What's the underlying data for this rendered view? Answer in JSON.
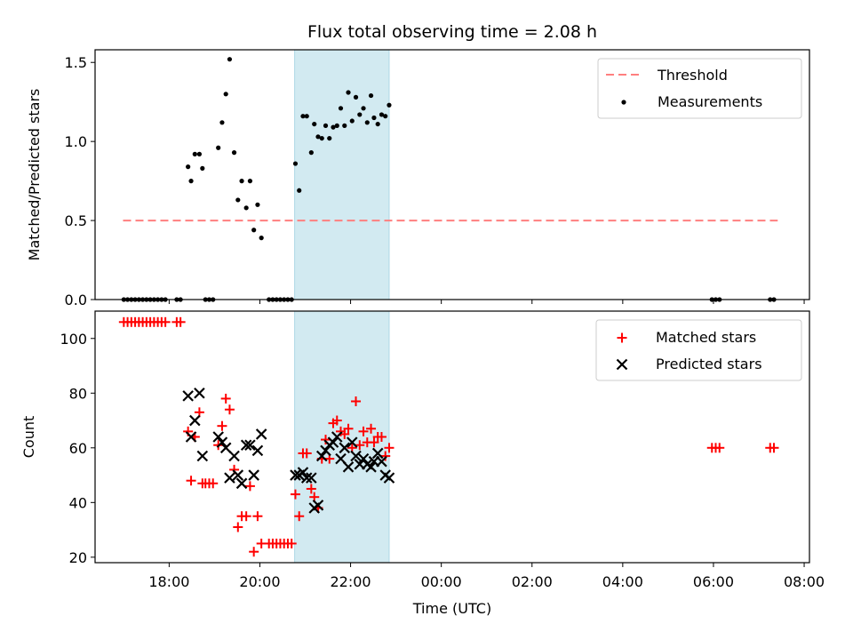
{
  "title": "Flux total observing time = 2.08 h",
  "shade_color": "#add8e6",
  "shaded_span": [
    "20:46",
    "22:51"
  ],
  "x_axis": {
    "label": "Time (UTC)",
    "range": [
      "16:22",
      "08:07"
    ],
    "ticks": [
      "18:00",
      "20:00",
      "22:00",
      "00:00",
      "02:00",
      "04:00",
      "06:00",
      "08:00"
    ]
  },
  "top_panel": {
    "ylabel": "Matched/Predicted stars",
    "ylim": [
      0,
      1.58
    ],
    "yticks": [
      "0.0",
      "0.5",
      "1.0",
      "1.5"
    ],
    "legend": {
      "placement": "top-right",
      "threshold_label": "Threshold",
      "measurements_label": "Measurements"
    },
    "threshold": {
      "value": 0.5,
      "from": "16:59",
      "to": "07:25",
      "color": "#ff7f7f"
    },
    "measurements": {
      "color": "#000000",
      "points": [
        [
          "17:00",
          0
        ],
        [
          "17:05",
          0
        ],
        [
          "17:10",
          0
        ],
        [
          "17:15",
          0
        ],
        [
          "17:20",
          0
        ],
        [
          "17:25",
          0
        ],
        [
          "17:30",
          0
        ],
        [
          "17:35",
          0
        ],
        [
          "17:40",
          0
        ],
        [
          "17:45",
          0
        ],
        [
          "17:50",
          0
        ],
        [
          "17:55",
          0
        ],
        [
          "18:10",
          0
        ],
        [
          "18:15",
          0
        ],
        [
          "18:25",
          0.84
        ],
        [
          "18:29",
          0.75
        ],
        [
          "18:34",
          0.92
        ],
        [
          "18:40",
          0.92
        ],
        [
          "18:44",
          0.83
        ],
        [
          "18:48",
          0
        ],
        [
          "18:53",
          0
        ],
        [
          "18:58",
          0
        ],
        [
          "19:05",
          0.96
        ],
        [
          "19:10",
          1.12
        ],
        [
          "19:15",
          1.3
        ],
        [
          "19:20",
          1.52
        ],
        [
          "19:26",
          0.93
        ],
        [
          "19:31",
          0.63
        ],
        [
          "19:36",
          0.75
        ],
        [
          "19:42",
          0.58
        ],
        [
          "19:47",
          0.75
        ],
        [
          "19:52",
          0.44
        ],
        [
          "19:57",
          0.6
        ],
        [
          "20:02",
          0.39
        ],
        [
          "20:12",
          0
        ],
        [
          "20:17",
          0
        ],
        [
          "20:22",
          0
        ],
        [
          "20:27",
          0
        ],
        [
          "20:32",
          0
        ],
        [
          "20:37",
          0
        ],
        [
          "20:42",
          0
        ],
        [
          "20:47",
          0.86
        ],
        [
          "20:52",
          0.69
        ],
        [
          "20:57",
          1.16
        ],
        [
          "21:02",
          1.16
        ],
        [
          "21:08",
          0.93
        ],
        [
          "21:12",
          1.11
        ],
        [
          "21:17",
          1.03
        ],
        [
          "21:22",
          1.02
        ],
        [
          "21:27",
          1.1
        ],
        [
          "21:32",
          1.02
        ],
        [
          "21:37",
          1.09
        ],
        [
          "21:42",
          1.1
        ],
        [
          "21:47",
          1.21
        ],
        [
          "21:52",
          1.1
        ],
        [
          "21:57",
          1.31
        ],
        [
          "22:02",
          1.13
        ],
        [
          "22:07",
          1.28
        ],
        [
          "22:12",
          1.17
        ],
        [
          "22:17",
          1.21
        ],
        [
          "22:22",
          1.12
        ],
        [
          "22:27",
          1.29
        ],
        [
          "22:31",
          1.15
        ],
        [
          "22:36",
          1.11
        ],
        [
          "22:41",
          1.17
        ],
        [
          "22:46",
          1.16
        ],
        [
          "22:51",
          1.23
        ],
        [
          "05:58",
          0
        ],
        [
          "06:03",
          0
        ],
        [
          "06:08",
          0
        ],
        [
          "07:15",
          0
        ],
        [
          "07:20",
          0
        ]
      ]
    }
  },
  "bottom_panel": {
    "ylabel": "Count",
    "ylim": [
      18,
      110
    ],
    "yticks": [
      "20",
      "40",
      "60",
      "80",
      "100"
    ],
    "legend": {
      "placement": "top-right",
      "matched_label": "Matched stars",
      "predicted_label": "Predicted stars"
    },
    "matched": {
      "color": "#ff0000",
      "points": [
        [
          "17:00",
          106
        ],
        [
          "17:05",
          106
        ],
        [
          "17:10",
          106
        ],
        [
          "17:15",
          106
        ],
        [
          "17:20",
          106
        ],
        [
          "17:25",
          106
        ],
        [
          "17:30",
          106
        ],
        [
          "17:35",
          106
        ],
        [
          "17:40",
          106
        ],
        [
          "17:45",
          106
        ],
        [
          "17:50",
          106
        ],
        [
          "17:55",
          106
        ],
        [
          "18:10",
          106
        ],
        [
          "18:15",
          106
        ],
        [
          "18:25",
          66
        ],
        [
          "18:29",
          48
        ],
        [
          "18:34",
          64
        ],
        [
          "18:40",
          73
        ],
        [
          "18:44",
          47
        ],
        [
          "18:48",
          47
        ],
        [
          "18:53",
          47
        ],
        [
          "18:58",
          47
        ],
        [
          "19:05",
          61
        ],
        [
          "19:10",
          68
        ],
        [
          "19:15",
          78
        ],
        [
          "19:20",
          74
        ],
        [
          "19:26",
          52
        ],
        [
          "19:31",
          31
        ],
        [
          "19:36",
          35
        ],
        [
          "19:42",
          35
        ],
        [
          "19:47",
          46
        ],
        [
          "19:52",
          22
        ],
        [
          "19:57",
          35
        ],
        [
          "20:02",
          25
        ],
        [
          "20:12",
          25
        ],
        [
          "20:17",
          25
        ],
        [
          "20:22",
          25
        ],
        [
          "20:27",
          25
        ],
        [
          "20:32",
          25
        ],
        [
          "20:37",
          25
        ],
        [
          "20:42",
          25
        ],
        [
          "20:47",
          43
        ],
        [
          "20:52",
          35
        ],
        [
          "20:57",
          58
        ],
        [
          "21:02",
          58
        ],
        [
          "21:08",
          45
        ],
        [
          "21:12",
          42
        ],
        [
          "21:17",
          38
        ],
        [
          "21:22",
          56
        ],
        [
          "21:27",
          63
        ],
        [
          "21:32",
          56
        ],
        [
          "21:37",
          69
        ],
        [
          "21:42",
          70
        ],
        [
          "21:47",
          66
        ],
        [
          "21:52",
          65
        ],
        [
          "21:57",
          67
        ],
        [
          "22:02",
          60
        ],
        [
          "22:07",
          77
        ],
        [
          "22:12",
          61
        ],
        [
          "22:17",
          66
        ],
        [
          "22:22",
          62
        ],
        [
          "22:27",
          67
        ],
        [
          "22:31",
          62
        ],
        [
          "22:36",
          64
        ],
        [
          "22:41",
          64
        ],
        [
          "22:46",
          57
        ],
        [
          "22:51",
          60
        ],
        [
          "05:58",
          60
        ],
        [
          "06:03",
          60
        ],
        [
          "06:08",
          60
        ],
        [
          "07:15",
          60
        ],
        [
          "07:20",
          60
        ]
      ]
    },
    "predicted": {
      "color": "#000000",
      "points": [
        [
          "18:25",
          79
        ],
        [
          "18:29",
          64
        ],
        [
          "18:34",
          70
        ],
        [
          "18:40",
          80
        ],
        [
          "18:44",
          57
        ],
        [
          "19:05",
          64
        ],
        [
          "19:10",
          62
        ],
        [
          "19:15",
          60
        ],
        [
          "19:20",
          49
        ],
        [
          "19:26",
          57
        ],
        [
          "19:31",
          50
        ],
        [
          "19:36",
          47
        ],
        [
          "19:42",
          61
        ],
        [
          "19:47",
          61
        ],
        [
          "19:52",
          50
        ],
        [
          "19:57",
          59
        ],
        [
          "20:02",
          65
        ],
        [
          "20:47",
          50
        ],
        [
          "20:52",
          50
        ],
        [
          "20:57",
          51
        ],
        [
          "21:02",
          49
        ],
        [
          "21:08",
          49
        ],
        [
          "21:12",
          38
        ],
        [
          "21:17",
          39
        ],
        [
          "21:22",
          57
        ],
        [
          "21:27",
          59
        ],
        [
          "21:32",
          61
        ],
        [
          "21:37",
          62
        ],
        [
          "21:42",
          64
        ],
        [
          "21:47",
          56
        ],
        [
          "21:52",
          60
        ],
        [
          "21:57",
          53
        ],
        [
          "22:02",
          62
        ],
        [
          "22:07",
          57
        ],
        [
          "22:12",
          54
        ],
        [
          "22:17",
          56
        ],
        [
          "22:22",
          54
        ],
        [
          "22:27",
          53
        ],
        [
          "22:31",
          55
        ],
        [
          "22:36",
          58
        ],
        [
          "22:41",
          55
        ],
        [
          "22:46",
          50
        ],
        [
          "22:51",
          49
        ]
      ]
    }
  }
}
